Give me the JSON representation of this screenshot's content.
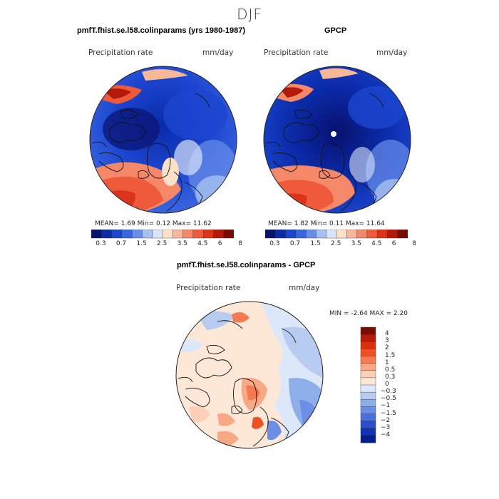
{
  "figure": {
    "title": "DJF"
  },
  "panels": [
    {
      "title": "pmfT.fhist.se.l58.colinparams (yrs 1980-1987)",
      "variable": "Precipitation rate",
      "units": "mm/day",
      "stats": "MEAN=     1.69   Min=     0.12   Max=   11.62"
    },
    {
      "title": "GPCP",
      "variable": "Precipitation rate",
      "units": "mm/day",
      "stats": "MEAN=     1.82   Min=     0.11   Max=   11.64"
    },
    {
      "title": "pmfT.fhist.se.l58.colinparams - GPCP",
      "variable": "Precipitation rate",
      "units": "mm/day",
      "stats": "MIN =   -2.64  MAX =    2.20"
    }
  ],
  "colorbar_top": {
    "colors": [
      "#08116e",
      "#0a2aa8",
      "#1c46d0",
      "#3a66e0",
      "#6a8ee8",
      "#a8c0f0",
      "#d8e4f8",
      "#fde0c8",
      "#f8b898",
      "#f48868",
      "#ee5a3a",
      "#dc3418",
      "#b41a0a",
      "#7a0c04"
    ],
    "tick_labels": [
      "0.3",
      "0.7",
      "1.5",
      "2.5",
      "3.5",
      "4.5",
      "6",
      "8"
    ]
  },
  "colorbar_diff": {
    "colors": [
      "#7a0c04",
      "#b81a0a",
      "#d8300e",
      "#ec5222",
      "#f47a52",
      "#f8a884",
      "#fcd0b8",
      "#fde8d8",
      "#dce8fa",
      "#b8ccf2",
      "#8eaeea",
      "#6c8ee6",
      "#4a6ee0",
      "#2a4ed0",
      "#1432b4",
      "#061e8c"
    ],
    "tick_labels": [
      "4",
      "3",
      "2",
      "1.5",
      "1",
      "0.5",
      "0.3",
      "0",
      "−0.3",
      "−0.5",
      "−1",
      "−1.5",
      "−2",
      "−3",
      "−4"
    ]
  },
  "map_colors": {
    "dry_deep": "#0a2aa8",
    "dry": "#3a66e0",
    "mid": "#a8c0f0",
    "wet": "#ee5a3a",
    "very_wet": "#b41a0a",
    "diff_neutral": "#fde8d8",
    "diff_neg": "#b8ccf2",
    "diff_pos": "#f47a52",
    "coast": "#111111"
  }
}
